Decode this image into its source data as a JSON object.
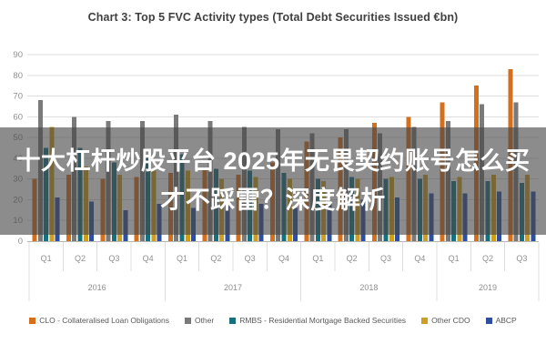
{
  "page": {
    "background": "#ffffff"
  },
  "overlay": {
    "line1": "十大杠杆炒股平台 2025年无畏契约账号怎么买",
    "line2": "才不踩雷？深度解析",
    "text_color": "#ffffff",
    "band_color": "rgba(70,70,70,0.62)"
  },
  "chart_data": {
    "type": "bar",
    "title": "Chart 3: Top 5 FVC Activity types (Total Debt Securities Issued €bn)",
    "xlabel": "",
    "ylabel": "",
    "ylim": [
      0,
      90
    ],
    "yticks": [
      0,
      10,
      20,
      30,
      40,
      50,
      60,
      70,
      80,
      90
    ],
    "grid": true,
    "legend_position": "bottom",
    "categories": [
      "Q1",
      "Q2",
      "Q3",
      "Q4",
      "Q1",
      "Q2",
      "Q3",
      "Q4",
      "Q1",
      "Q2",
      "Q3",
      "Q4",
      "Q1",
      "Q2",
      "Q3"
    ],
    "year_groups": [
      {
        "label": "2016",
        "quarters": 4
      },
      {
        "label": "2017",
        "quarters": 4
      },
      {
        "label": "2018",
        "quarters": 4
      },
      {
        "label": "2019",
        "quarters": 3
      }
    ],
    "series": [
      {
        "name": "CLO - Collateralised Loan Obligations",
        "color": "#d4701d",
        "values": [
          30,
          32,
          30,
          31,
          33,
          35,
          32,
          38,
          48,
          50,
          57,
          60,
          67,
          75,
          83
        ]
      },
      {
        "name": "Other",
        "color": "#7a7a7a",
        "values": [
          68,
          60,
          58,
          58,
          61,
          58,
          55,
          54,
          52,
          54,
          52,
          55,
          58,
          66,
          67
        ]
      },
      {
        "name": "RMBS - Residential Mortgage Backed Securities",
        "color": "#16707e",
        "values": [
          45,
          45,
          38,
          40,
          42,
          35,
          34,
          33,
          30,
          31,
          30,
          30,
          29,
          29,
          28
        ]
      },
      {
        "name": "Other CDO",
        "color": "#cf9e1f",
        "values": [
          55,
          36,
          32,
          35,
          34,
          30,
          31,
          30,
          29,
          30,
          31,
          32,
          31,
          32,
          32
        ]
      },
      {
        "name": "ABCP",
        "color": "#2d4f9e",
        "values": [
          21,
          19,
          15,
          18,
          16,
          17,
          18,
          16,
          19,
          20,
          21,
          23,
          23,
          24,
          24
        ]
      }
    ],
    "colors": {
      "grid": "#dedede",
      "axis": "#b5b5b5",
      "tick_label": "#8f8f8f",
      "title": "#404040",
      "legend_text": "#595959"
    }
  }
}
